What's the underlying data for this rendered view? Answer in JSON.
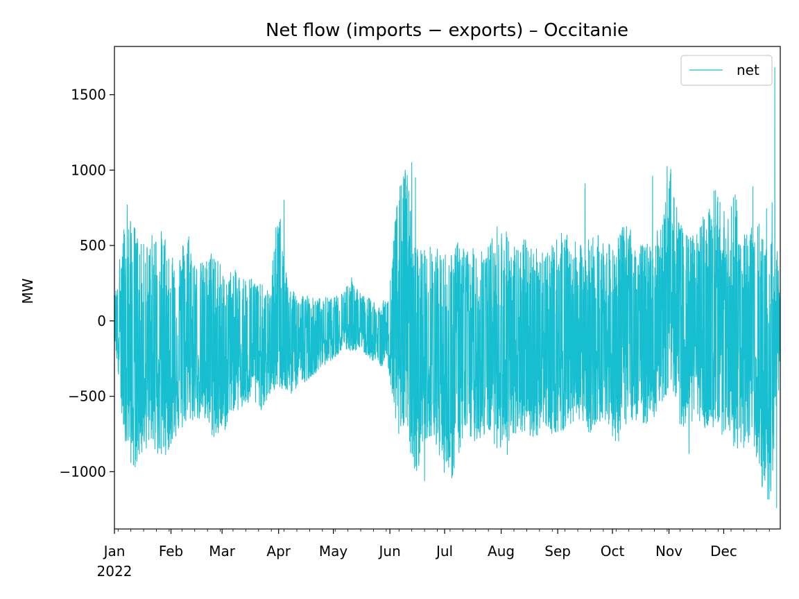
{
  "chart_data": {
    "type": "line",
    "title": "Net flow (imports − exports) – Occitanie",
    "xlabel": "",
    "ylabel": "MW",
    "ylim": [
      -1380,
      1820
    ],
    "xlim_day": [
      0,
      365
    ],
    "grid": false,
    "legend": {
      "position": "top-right",
      "entries": [
        "net"
      ]
    },
    "y_ticks": [
      -1000,
      -500,
      0,
      500,
      1000,
      1500
    ],
    "y_tick_labels": [
      "−1000",
      "−500",
      "0",
      "500",
      "1000",
      "1500"
    ],
    "x_ticks": [
      {
        "label": "Jan",
        "day": 0
      },
      {
        "label": "Feb",
        "day": 31
      },
      {
        "label": "Mar",
        "day": 59
      },
      {
        "label": "Apr",
        "day": 90
      },
      {
        "label": "May",
        "day": 120
      },
      {
        "label": "Jun",
        "day": 151
      },
      {
        "label": "Jul",
        "day": 181
      },
      {
        "label": "Aug",
        "day": 212
      },
      {
        "label": "Sep",
        "day": 243
      },
      {
        "label": "Oct",
        "day": 273
      },
      {
        "label": "Nov",
        "day": 304
      },
      {
        "label": "Dec",
        "day": 334
      }
    ],
    "x_year_label": "2022",
    "series": [
      {
        "name": "net",
        "color": "#17becf",
        "x_unit": "day of year",
        "envelope_day": [
          0,
          5,
          10,
          15,
          20,
          25,
          30,
          35,
          40,
          45,
          50,
          55,
          60,
          65,
          70,
          75,
          80,
          85,
          90,
          95,
          100,
          105,
          110,
          115,
          120,
          125,
          130,
          135,
          140,
          145,
          150,
          155,
          160,
          165,
          170,
          175,
          180,
          185,
          190,
          195,
          200,
          205,
          210,
          215,
          220,
          225,
          230,
          235,
          240,
          245,
          250,
          255,
          260,
          265,
          270,
          275,
          280,
          285,
          290,
          295,
          300,
          305,
          310,
          315,
          320,
          325,
          330,
          335,
          340,
          345,
          350,
          355,
          360,
          365
        ],
        "envelope_max": [
          150,
          630,
          680,
          500,
          580,
          610,
          560,
          420,
          640,
          380,
          400,
          520,
          300,
          350,
          300,
          300,
          250,
          200,
          800,
          250,
          200,
          180,
          150,
          160,
          150,
          200,
          300,
          180,
          150,
          120,
          150,
          830,
          1050,
          500,
          500,
          500,
          450,
          500,
          550,
          450,
          550,
          500,
          650,
          600,
          500,
          550,
          500,
          500,
          500,
          600,
          550,
          500,
          550,
          600,
          500,
          550,
          650,
          600,
          500,
          550,
          650,
          1020,
          650,
          550,
          600,
          800,
          890,
          700,
          880,
          650,
          700,
          650,
          880,
          250
        ],
        "envelope_min": [
          -100,
          -750,
          -1000,
          -900,
          -800,
          -950,
          -850,
          -750,
          -700,
          -650,
          -700,
          -800,
          -750,
          -600,
          -600,
          -550,
          -600,
          -500,
          -450,
          -500,
          -450,
          -400,
          -350,
          -300,
          -250,
          -200,
          -200,
          -200,
          -250,
          -300,
          -300,
          -750,
          -750,
          -1060,
          -800,
          -750,
          -1000,
          -1050,
          -850,
          -800,
          -800,
          -750,
          -850,
          -900,
          -800,
          -750,
          -800,
          -700,
          -750,
          -750,
          -700,
          -650,
          -750,
          -700,
          -650,
          -850,
          -700,
          -650,
          -700,
          -650,
          -600,
          -400,
          -700,
          -700,
          -650,
          -750,
          -800,
          -800,
          -850,
          -850,
          -800,
          -1100,
          -1240,
          -300
        ],
        "spikes": [
          {
            "day": 7,
            "value": 770
          },
          {
            "day": 163,
            "value": 1050
          },
          {
            "day": 165,
            "value": 950
          },
          {
            "day": 170,
            "value": -1060
          },
          {
            "day": 93,
            "value": 800
          },
          {
            "day": 258,
            "value": 910
          },
          {
            "day": 295,
            "value": 960
          },
          {
            "day": 303,
            "value": 1025
          },
          {
            "day": 315,
            "value": -880
          },
          {
            "day": 350,
            "value": 890
          },
          {
            "day": 355,
            "value": -1100
          },
          {
            "day": 362,
            "value": 1680
          },
          {
            "day": 363,
            "value": -1240
          }
        ]
      }
    ]
  }
}
